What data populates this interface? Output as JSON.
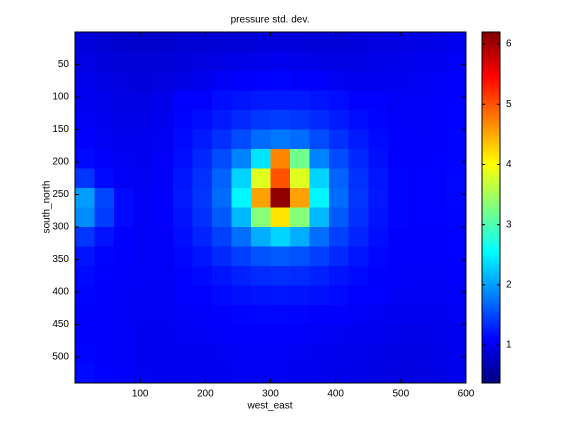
{
  "chart_data": {
    "type": "heatmap",
    "title": "pressure std. dev.",
    "x_label": "west_east",
    "y_label": "south_north",
    "x": [
      15,
      45,
      75,
      105,
      135,
      165,
      195,
      225,
      255,
      285,
      315,
      345,
      375,
      405,
      435,
      465,
      495,
      525,
      555,
      585
    ],
    "y": [
      15,
      45,
      75,
      105,
      135,
      165,
      195,
      225,
      255,
      285,
      315,
      345,
      375,
      405,
      435,
      465,
      495,
      525
    ],
    "values": [
      [
        0.9,
        0.85,
        0.82,
        0.8,
        0.82,
        0.85,
        0.85,
        0.87,
        0.88,
        0.9,
        0.9,
        0.9,
        0.88,
        0.88,
        0.9,
        0.92,
        0.92,
        0.95,
        0.97,
        1.0
      ],
      [
        0.95,
        0.9,
        0.88,
        0.87,
        0.88,
        0.9,
        0.92,
        0.95,
        0.97,
        0.98,
        1.0,
        0.98,
        0.96,
        0.95,
        0.95,
        0.97,
        0.98,
        1.0,
        1.02,
        1.05
      ],
      [
        1.0,
        0.95,
        0.92,
        0.9,
        0.92,
        0.95,
        1.0,
        1.05,
        1.08,
        1.1,
        1.12,
        1.1,
        1.07,
        1.03,
        1.0,
        1.0,
        1.02,
        1.03,
        1.05,
        1.08
      ],
      [
        1.02,
        0.98,
        0.95,
        0.95,
        0.98,
        1.1,
        1.1,
        1.17,
        1.21,
        1.24,
        1.25,
        1.24,
        1.21,
        1.17,
        1.1,
        1.1,
        1.05,
        1.05,
        1.07,
        1.1
      ],
      [
        1.05,
        1.0,
        0.97,
        0.97,
        1.0,
        1.12,
        1.17,
        1.25,
        1.33,
        1.41,
        1.44,
        1.41,
        1.33,
        1.25,
        1.17,
        1.12,
        1.07,
        1.05,
        1.08,
        1.1
      ],
      [
        1.08,
        1.03,
        1.0,
        1.0,
        1.03,
        1.15,
        1.25,
        1.37,
        1.53,
        1.71,
        1.79,
        1.71,
        1.53,
        1.37,
        1.25,
        1.15,
        1.08,
        1.07,
        1.08,
        1.12
      ],
      [
        1.15,
        1.07,
        1.03,
        1.02,
        1.05,
        1.18,
        1.32,
        1.52,
        1.85,
        2.4,
        4.7,
        3.2,
        1.85,
        1.52,
        1.32,
        1.18,
        1.1,
        1.08,
        1.1,
        1.12
      ],
      [
        1.4,
        1.15,
        1.05,
        1.03,
        1.07,
        1.22,
        1.38,
        1.66,
        2.31,
        3.84,
        5.0,
        3.84,
        2.31,
        1.66,
        1.38,
        1.22,
        1.12,
        1.1,
        1.1,
        1.13
      ],
      [
        2.0,
        1.5,
        1.15,
        1.05,
        1.08,
        1.23,
        1.4,
        1.71,
        2.51,
        4.55,
        6.1,
        4.55,
        2.51,
        1.71,
        1.4,
        1.23,
        1.12,
        1.1,
        1.1,
        1.13
      ],
      [
        1.9,
        1.45,
        1.15,
        1.05,
        1.08,
        1.2,
        1.36,
        1.62,
        2.16,
        3.32,
        4.17,
        3.32,
        2.16,
        1.62,
        1.36,
        1.2,
        1.12,
        1.1,
        1.1,
        1.12
      ],
      [
        1.4,
        1.2,
        1.1,
        1.05,
        1.07,
        1.17,
        1.3,
        1.47,
        1.73,
        2.09,
        2.31,
        2.09,
        1.73,
        1.47,
        1.3,
        1.17,
        1.1,
        1.08,
        1.08,
        1.1
      ],
      [
        1.2,
        1.12,
        1.08,
        1.05,
        1.05,
        1.13,
        1.22,
        1.33,
        1.46,
        1.57,
        1.62,
        1.57,
        1.46,
        1.33,
        1.22,
        1.13,
        1.08,
        1.07,
        1.07,
        1.1
      ],
      [
        1.15,
        1.1,
        1.07,
        1.05,
        1.05,
        1.1,
        1.15,
        1.21,
        1.28,
        1.34,
        1.36,
        1.34,
        1.28,
        1.21,
        1.15,
        1.1,
        1.07,
        1.05,
        1.05,
        1.08
      ],
      [
        1.12,
        1.08,
        1.05,
        1.03,
        1.03,
        1.1,
        1.1,
        1.15,
        1.19,
        1.21,
        1.22,
        1.21,
        1.19,
        1.15,
        1.1,
        1.1,
        1.05,
        1.03,
        1.03,
        1.05
      ],
      [
        1.1,
        1.07,
        1.05,
        1.03,
        1.03,
        1.05,
        1.07,
        1.1,
        1.12,
        1.13,
        1.13,
        1.12,
        1.1,
        1.08,
        1.05,
        1.03,
        1.02,
        1.0,
        1.0,
        1.03
      ],
      [
        1.1,
        1.07,
        1.05,
        1.02,
        1.02,
        1.03,
        1.05,
        1.07,
        1.08,
        1.08,
        1.08,
        1.07,
        1.05,
        1.03,
        1.02,
        1.0,
        0.98,
        0.97,
        0.98,
        1.0
      ],
      [
        1.12,
        1.08,
        1.05,
        1.02,
        1.0,
        1.0,
        1.02,
        1.03,
        1.05,
        1.05,
        1.05,
        1.03,
        1.02,
        1.0,
        0.98,
        0.97,
        0.95,
        0.95,
        0.97,
        1.0
      ],
      [
        1.15,
        1.1,
        1.07,
        1.03,
        1.0,
        1.0,
        1.0,
        1.02,
        1.03,
        1.03,
        1.03,
        1.02,
        1.0,
        0.98,
        0.97,
        0.95,
        0.93,
        0.93,
        0.95,
        0.98
      ]
    ],
    "xlim": [
      0,
      600
    ],
    "ylim": [
      0,
      540
    ],
    "y_reversed": true,
    "xticks": [
      100,
      200,
      300,
      400,
      500,
      600
    ],
    "yticks": [
      50,
      100,
      150,
      200,
      250,
      300,
      350,
      400,
      450,
      500
    ],
    "colormap": "jet",
    "clim": [
      0.37,
      6.2
    ],
    "cticks": [
      1,
      2,
      3,
      4,
      5,
      6
    ]
  }
}
